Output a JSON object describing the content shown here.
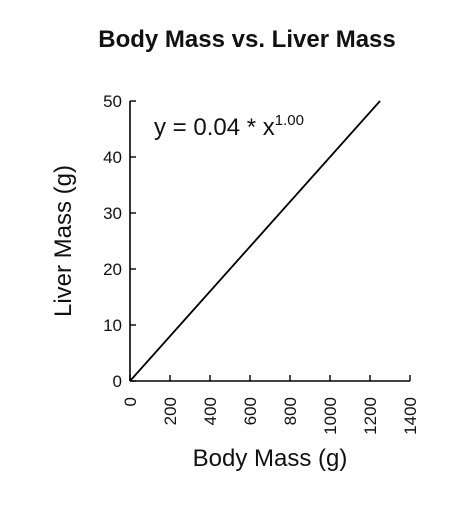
{
  "chart_data": {
    "type": "line",
    "title": "Body Mass vs. Liver Mass",
    "xlabel": "Body Mass (g)",
    "ylabel": "Liver Mass (g)",
    "xlim": [
      0,
      1400
    ],
    "ylim": [
      0,
      50
    ],
    "x_ticks": [
      0,
      200,
      400,
      600,
      800,
      1000,
      1200,
      1400
    ],
    "y_ticks": [
      0,
      10,
      20,
      30,
      40,
      50
    ],
    "x_tick_labels": [
      "0",
      "200",
      "400",
      "600",
      "800",
      "1000",
      "1200",
      "1400"
    ],
    "y_tick_labels": [
      "0",
      "10",
      "20",
      "30",
      "40",
      "50"
    ],
    "grid": false,
    "series": [
      {
        "x": [
          0,
          1250
        ],
        "y": [
          0,
          50
        ],
        "color": "#000000"
      }
    ],
    "annotation": {
      "prefix": "y = 0.04 * x",
      "exponent": "1.00"
    }
  }
}
